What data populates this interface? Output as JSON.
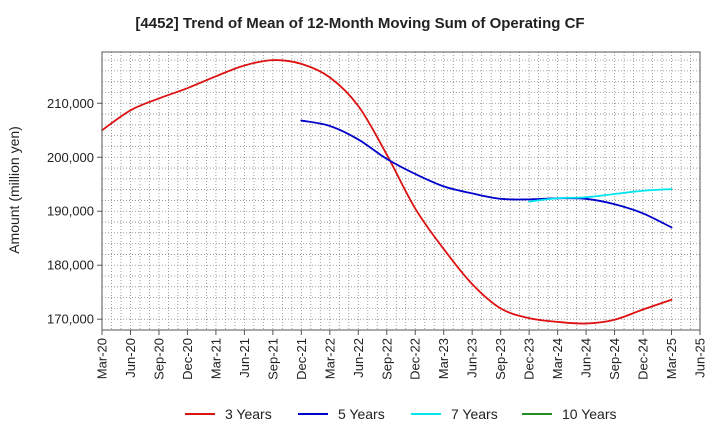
{
  "chart_data": {
    "type": "line",
    "title": "[4452]  Trend of Mean of 12-Month Moving Sum of Operating CF",
    "xlabel": "",
    "ylabel": "Amount (million yen)",
    "ylim": [
      168000,
      219500
    ],
    "yticks": [
      170000,
      180000,
      190000,
      200000,
      210000
    ],
    "ytick_labels": [
      "170,000",
      "180,000",
      "190,000",
      "200,000",
      "210,000"
    ],
    "x_tick_labels": [
      "Mar-20",
      "Jun-20",
      "Sep-20",
      "Dec-20",
      "Mar-21",
      "Jun-21",
      "Sep-21",
      "Dec-21",
      "Mar-22",
      "Jun-22",
      "Sep-22",
      "Dec-22",
      "Mar-23",
      "Jun-23",
      "Sep-23",
      "Dec-23",
      "Mar-24",
      "Jun-24",
      "Sep-24",
      "Dec-24",
      "Mar-25",
      "Jun-25"
    ],
    "grid": true,
    "legend_position": "bottom",
    "series": [
      {
        "name": "3 Years",
        "color": "#dd1111",
        "points": [
          [
            0,
            205000
          ],
          [
            1,
            208700
          ],
          [
            2,
            210900
          ],
          [
            3,
            212800
          ],
          [
            4,
            215000
          ],
          [
            5,
            217000
          ],
          [
            6,
            218000
          ],
          [
            7,
            217300
          ],
          [
            8,
            214800
          ],
          [
            9,
            209500
          ],
          [
            10,
            200500
          ],
          [
            11,
            190500
          ],
          [
            12,
            183000
          ],
          [
            13,
            176500
          ],
          [
            14,
            172000
          ],
          [
            15,
            170200
          ],
          [
            16,
            169500
          ],
          [
            17,
            169200
          ],
          [
            18,
            169900
          ],
          [
            19,
            171800
          ],
          [
            20,
            173600
          ]
        ]
      },
      {
        "name": "5 Years",
        "color": "#0000cc",
        "points": [
          [
            7,
            206800
          ],
          [
            8,
            205800
          ],
          [
            9,
            203300
          ],
          [
            10,
            199700
          ],
          [
            11,
            196900
          ],
          [
            12,
            194600
          ],
          [
            13,
            193300
          ],
          [
            14,
            192300
          ],
          [
            15,
            192200
          ],
          [
            16,
            192400
          ],
          [
            17,
            192300
          ],
          [
            18,
            191300
          ],
          [
            19,
            189600
          ],
          [
            20,
            187000
          ]
        ]
      },
      {
        "name": "7 Years",
        "color": "#00e5ee",
        "points": [
          [
            15,
            191800
          ],
          [
            16,
            192400
          ],
          [
            17,
            192600
          ],
          [
            18,
            193200
          ],
          [
            19,
            193800
          ],
          [
            20,
            194100
          ]
        ]
      },
      {
        "name": "10 Years",
        "color": "#228b22",
        "points": []
      }
    ]
  }
}
